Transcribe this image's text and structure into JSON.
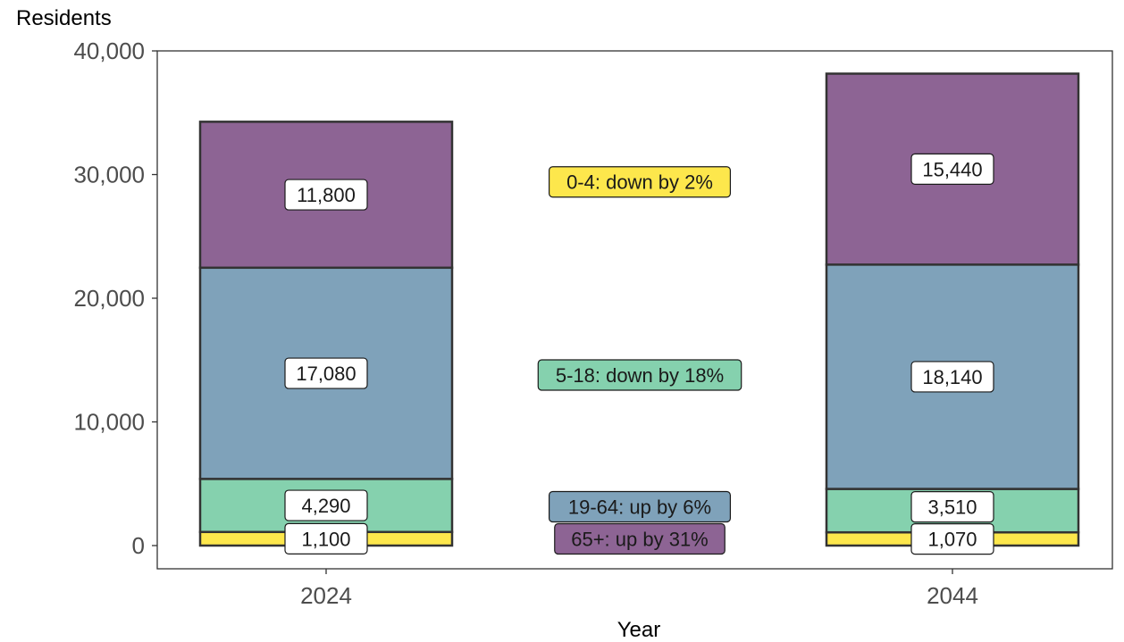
{
  "chart_data": {
    "type": "bar",
    "stacked": true,
    "categories": [
      "2024",
      "2044"
    ],
    "xlabel": "Year",
    "ylabel": "Residents",
    "ylim": [
      0,
      40000
    ],
    "y_ticks": [
      0,
      10000,
      20000,
      30000,
      40000
    ],
    "y_tick_labels": [
      "0",
      "10,000",
      "20,000",
      "30,000",
      "40,000"
    ],
    "grid": false,
    "series": [
      {
        "name": "0-4",
        "values": [
          1100,
          1070
        ],
        "labels": [
          "1,100",
          "1,070"
        ],
        "color": "#fde74c"
      },
      {
        "name": "5-18",
        "values": [
          4290,
          3510
        ],
        "labels": [
          "4,290",
          "3,510"
        ],
        "color": "#85d1ae"
      },
      {
        "name": "19-64",
        "values": [
          17080,
          18140
        ],
        "labels": [
          "17,080",
          "18,140"
        ],
        "color": "#7fa2ba"
      },
      {
        "name": "65+",
        "values": [
          11800,
          15440
        ],
        "labels": [
          "11,800",
          "15,440"
        ],
        "color": "#8d6494"
      }
    ],
    "annotations": [
      {
        "text": "65+: up by 31%",
        "series": "65+",
        "color": "#8d6494",
        "text_color": "#ffffff"
      },
      {
        "text": "19-64: up by 6%",
        "series": "19-64",
        "color": "#7fa2ba",
        "text_color": "#1a1a1a"
      },
      {
        "text": "5-18: down by 18%",
        "series": "5-18",
        "color": "#85d1ae",
        "text_color": "#1a1a1a"
      },
      {
        "text": "0-4: down by 2%",
        "series": "0-4",
        "color": "#fde74c",
        "text_color": "#1a1a1a"
      }
    ]
  }
}
